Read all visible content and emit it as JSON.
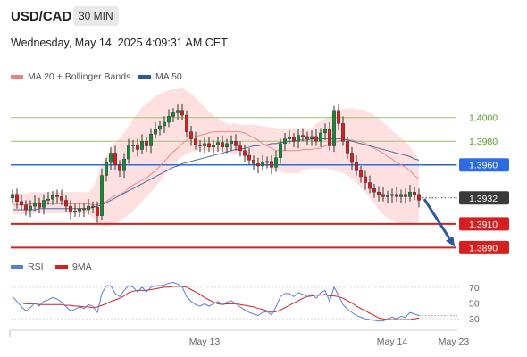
{
  "header": {
    "symbol": "USD/CAD",
    "timeframe": "30 MIN"
  },
  "datetime": "Wednesday, May 14, 2025 4:09:31 AM CET",
  "colors": {
    "bands": "#ffd6d6",
    "ma20": "#f08080",
    "ma50": "#2d5b9a",
    "bull": "#1a8a3a",
    "bear": "#d42020",
    "rsi": "#5b7ed4",
    "rsi_ma": "#d42020",
    "resistance": "#9bc46a",
    "pivot": "#2d6be0",
    "support": "#d42020",
    "current": "#444444",
    "arrow": "#2d5b9a"
  },
  "chart_data": [
    {
      "type": "candlestick",
      "legend": [
        {
          "name": "MA 20 + Bollinger Bands",
          "color": "#f08080"
        },
        {
          "name": "MA 50",
          "color": "#2d5b9a"
        }
      ],
      "ylim": [
        1.3882,
        1.403
      ],
      "x_ticks": [
        "May 13",
        "May 14",
        "May 23"
      ],
      "levels": [
        {
          "value": 1.4,
          "label": "1.4000",
          "kind": "resistance"
        },
        {
          "value": 1.398,
          "label": "1.3980",
          "kind": "resistance"
        },
        {
          "value": 1.396,
          "label": "1.3960",
          "kind": "pivot"
        },
        {
          "value": 1.3932,
          "label": "1.3932",
          "kind": "current"
        },
        {
          "value": 1.391,
          "label": "1.3910",
          "kind": "support"
        },
        {
          "value": 1.389,
          "label": "1.3890",
          "kind": "support"
        }
      ],
      "closes": [
        1.3935,
        1.3929,
        1.3926,
        1.3922,
        1.3925,
        1.3928,
        1.3924,
        1.393,
        1.3931,
        1.3934,
        1.3933,
        1.393,
        1.3925,
        1.392,
        1.3921,
        1.3923,
        1.3922,
        1.3925,
        1.3924,
        1.3917,
        1.3951,
        1.3962,
        1.397,
        1.396,
        1.3955,
        1.3965,
        1.3976,
        1.3977,
        1.3973,
        1.398,
        1.3976,
        1.3986,
        1.399,
        1.3993,
        1.3996,
        1.4001,
        1.4004,
        1.4006,
        1.4002,
        1.3988,
        1.3982,
        1.3977,
        1.3976,
        1.3978,
        1.3975,
        1.3977,
        1.3979,
        1.3975,
        1.3978,
        1.398,
        1.3976,
        1.3972,
        1.3968,
        1.3964,
        1.3961,
        1.3959,
        1.3962,
        1.3963,
        1.3958,
        1.3966,
        1.3978,
        1.3982,
        1.3983,
        1.398,
        1.3985,
        1.3984,
        1.3982,
        1.3984,
        1.398,
        1.3987,
        1.399,
        1.3976,
        1.4006,
        1.3995,
        1.398,
        1.397,
        1.3962,
        1.3955,
        1.395,
        1.3945,
        1.394,
        1.3937,
        1.3935,
        1.3933,
        1.3934,
        1.3935,
        1.3933,
        1.3935,
        1.3933,
        1.3937,
        1.3935,
        1.393
      ],
      "ma20": [
        1.3926,
        1.3926,
        1.3926,
        1.3926,
        1.3927,
        1.3927,
        1.3927,
        1.3927,
        1.3927,
        1.3927,
        1.3927,
        1.3927,
        1.3927,
        1.3927,
        1.3927,
        1.3927,
        1.3927,
        1.3927,
        1.3926,
        1.3926,
        1.3928,
        1.3929,
        1.3932,
        1.3934,
        1.3935,
        1.3937,
        1.394,
        1.3943,
        1.3945,
        1.3947,
        1.3949,
        1.3952,
        1.3955,
        1.3959,
        1.3963,
        1.3967,
        1.3971,
        1.3974,
        1.3978,
        1.3981,
        1.3983,
        1.3984,
        1.3985,
        1.3986,
        1.3987,
        1.3988,
        1.3988,
        1.3988,
        1.3988,
        1.3988,
        1.3988,
        1.3988,
        1.3987,
        1.3985,
        1.3983,
        1.3981,
        1.3978,
        1.3976,
        1.3974,
        1.3972,
        1.3972,
        1.3972,
        1.3972,
        1.3972,
        1.3972,
        1.3973,
        1.3973,
        1.3973,
        1.3974,
        1.3974,
        1.3976,
        1.3977,
        1.3979,
        1.398,
        1.3981,
        1.3981,
        1.3981,
        1.398,
        1.398,
        1.3978,
        1.3976,
        1.3974,
        1.3972,
        1.397,
        1.3967,
        1.3965,
        1.3962,
        1.396,
        1.3958,
        1.3955,
        1.3951,
        1.3948
      ],
      "band_upper": [
        1.3936,
        1.3936,
        1.3936,
        1.3936,
        1.3937,
        1.3937,
        1.3937,
        1.3937,
        1.3937,
        1.3937,
        1.3937,
        1.3937,
        1.3937,
        1.3937,
        1.3937,
        1.3937,
        1.3937,
        1.3937,
        1.3941,
        1.395,
        1.3961,
        1.3966,
        1.3974,
        1.3979,
        1.3983,
        1.3987,
        1.3993,
        1.3999,
        1.4004,
        1.4009,
        1.4012,
        1.4015,
        1.4018,
        1.402,
        1.4022,
        1.4023,
        1.4024,
        1.4024,
        1.4025,
        1.4023,
        1.402,
        1.4017,
        1.4013,
        1.4009,
        1.4005,
        1.4002,
        1.3999,
        1.3997,
        1.3995,
        1.3995,
        1.3995,
        1.3994,
        1.3994,
        1.3994,
        1.3994,
        1.3993,
        1.3993,
        1.3992,
        1.3992,
        1.3991,
        1.3991,
        1.3991,
        1.3991,
        1.3991,
        1.3991,
        1.3991,
        1.3991,
        1.3991,
        1.3995,
        1.3997,
        1.3999,
        1.4001,
        1.4004,
        1.4006,
        1.4007,
        1.4008,
        1.4008,
        1.4007,
        1.4007,
        1.4006,
        1.4004,
        1.4002,
        1.3999,
        1.3996,
        1.3993,
        1.3989,
        1.3986,
        1.3983,
        1.398,
        1.3975,
        1.397,
        1.3965
      ],
      "band_lower": [
        1.3918,
        1.3918,
        1.3918,
        1.3918,
        1.3919,
        1.3919,
        1.3919,
        1.3919,
        1.3919,
        1.3919,
        1.3919,
        1.3919,
        1.3919,
        1.3919,
        1.3919,
        1.3919,
        1.3919,
        1.3918,
        1.3915,
        1.3911,
        1.3908,
        1.3908,
        1.3909,
        1.391,
        1.3912,
        1.3915,
        1.3918,
        1.3921,
        1.3925,
        1.3929,
        1.3933,
        1.3937,
        1.3941,
        1.3946,
        1.3951,
        1.3956,
        1.396,
        1.3964,
        1.3967,
        1.3969,
        1.3971,
        1.3972,
        1.3972,
        1.3972,
        1.3972,
        1.3972,
        1.3972,
        1.3971,
        1.3971,
        1.397,
        1.3969,
        1.3968,
        1.3967,
        1.3966,
        1.3964,
        1.3963,
        1.3961,
        1.3959,
        1.3957,
        1.3955,
        1.3954,
        1.3953,
        1.3953,
        1.3953,
        1.3953,
        1.3955,
        1.3956,
        1.3957,
        1.3957,
        1.3957,
        1.3957,
        1.3956,
        1.3955,
        1.3954,
        1.3953,
        1.3951,
        1.3948,
        1.3945,
        1.3941,
        1.3937,
        1.3932,
        1.3927,
        1.3922,
        1.3918,
        1.3915,
        1.3913,
        1.3911,
        1.391,
        1.391,
        1.391,
        1.3911,
        1.3912
      ],
      "ma50": [
        1.3922,
        1.3922,
        1.3922,
        1.3922,
        1.3922,
        1.3922,
        1.3923,
        1.3923,
        1.3923,
        1.3923,
        1.3923,
        1.3923,
        1.3923,
        1.3923,
        1.3923,
        1.3923,
        1.3923,
        1.3923,
        1.3924,
        1.3925,
        1.3926,
        1.3928,
        1.393,
        1.3932,
        1.3934,
        1.3936,
        1.3938,
        1.394,
        1.3942,
        1.3944,
        1.3946,
        1.3948,
        1.395,
        1.3952,
        1.3954,
        1.3956,
        1.3958,
        1.3959,
        1.3961,
        1.3962,
        1.3963,
        1.3964,
        1.3965,
        1.3966,
        1.3967,
        1.3968,
        1.3969,
        1.397,
        1.3971,
        1.3972,
        1.3973,
        1.3973,
        1.3974,
        1.3975,
        1.3976,
        1.3976,
        1.3977,
        1.3977,
        1.3978,
        1.3978,
        1.3979,
        1.3979,
        1.398,
        1.398,
        1.3981,
        1.3981,
        1.3981,
        1.3982,
        1.3982,
        1.3982,
        1.3982,
        1.3982,
        1.3982,
        1.3982,
        1.3982,
        1.3981,
        1.398,
        1.3979,
        1.3978,
        1.3977,
        1.3976,
        1.3975,
        1.3974,
        1.3973,
        1.3972,
        1.3971,
        1.397,
        1.3969,
        1.3968,
        1.3967,
        1.3965,
        1.3964
      ],
      "projection": {
        "from": 1.3931,
        "to": 1.3892
      }
    },
    {
      "type": "line",
      "legend": [
        {
          "name": "RSI",
          "color": "#5b7ed4"
        },
        {
          "name": "9MA",
          "color": "#d42020"
        }
      ],
      "ylim": [
        20,
        80
      ],
      "y_ticks": [
        70,
        50,
        30
      ],
      "rsi": [
        58,
        52,
        45,
        40,
        44,
        50,
        46,
        52,
        54,
        57,
        55,
        51,
        45,
        40,
        42,
        45,
        43,
        48,
        46,
        38,
        62,
        72,
        72,
        62,
        58,
        66,
        72,
        70,
        64,
        70,
        64,
        70,
        72,
        72,
        73,
        75,
        76,
        74,
        70,
        58,
        52,
        48,
        46,
        49,
        46,
        49,
        52,
        48,
        51,
        53,
        49,
        45,
        41,
        38,
        36,
        34,
        38,
        39,
        35,
        45,
        58,
        62,
        62,
        58,
        63,
        61,
        58,
        61,
        56,
        63,
        66,
        52,
        70,
        60,
        48,
        42,
        38,
        34,
        32,
        30,
        29,
        28,
        27,
        27,
        30,
        32,
        30,
        33,
        32,
        38,
        36,
        34
      ],
      "ma9": [
        50,
        50,
        50,
        49,
        49,
        49,
        48,
        48,
        48,
        48,
        48,
        48,
        47,
        47,
        46,
        46,
        45,
        45,
        44,
        45,
        47,
        49,
        52,
        54,
        56,
        59,
        63,
        65,
        66,
        66,
        66,
        67,
        68,
        69,
        70,
        70,
        71,
        71,
        71,
        70,
        67,
        64,
        61,
        57,
        54,
        51,
        49,
        48,
        49,
        49,
        49,
        48,
        47,
        46,
        45,
        43,
        42,
        40,
        38,
        39,
        41,
        44,
        47,
        50,
        53,
        56,
        58,
        59,
        60,
        60,
        61,
        59,
        59,
        58,
        56,
        53,
        50,
        46,
        43,
        40,
        37,
        34,
        31,
        30,
        29,
        29,
        29,
        29,
        29,
        29,
        30,
        31
      ]
    }
  ]
}
